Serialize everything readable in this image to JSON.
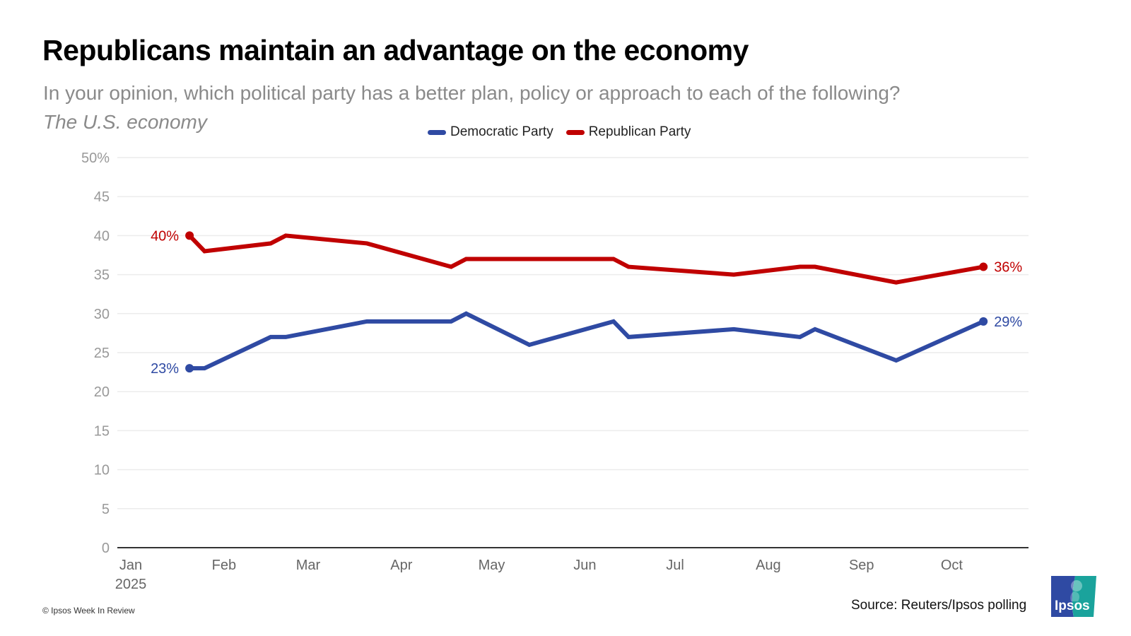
{
  "header": {
    "title": "Republicans maintain an advantage on the economy",
    "subtitle": "In your opinion, which political party has a better plan, policy or approach to each of the following?",
    "topic": "The U.S. economy"
  },
  "footer": {
    "copyright": "© Ipsos Week In Review",
    "source": "Source: Reuters/Ipsos polling",
    "logo_text": "Ipsos"
  },
  "colors": {
    "democratic": "#2f4aa3",
    "republican": "#c00000",
    "logo_blue": "#2f4aa3",
    "logo_teal": "#1aa39c"
  },
  "chart_data": {
    "type": "line",
    "title": "Republicans maintain an advantage on the economy",
    "xlabel": "",
    "ylabel": "",
    "ylim": [
      0,
      50
    ],
    "yticks": [
      "0",
      "5",
      "10",
      "15",
      "20",
      "25",
      "30",
      "35",
      "40",
      "45",
      "50%"
    ],
    "xticks": [
      "Jan\n2025",
      "Feb",
      "Mar",
      "Apr",
      "May",
      "Jun",
      "Jul",
      "Aug",
      "Sep",
      "Oct"
    ],
    "xlim_days": [
      0,
      303
    ],
    "x_day_of_year": [
      24,
      29,
      51,
      56,
      83,
      111,
      116,
      137,
      165,
      170,
      205,
      227,
      232,
      259,
      288
    ],
    "grid": true,
    "legend_position": "top-center",
    "series": [
      {
        "name": "Democratic Party",
        "color": "#2f4aa3",
        "values": [
          23,
          23,
          27,
          27,
          29,
          29,
          30,
          26,
          29,
          27,
          28,
          27,
          28,
          24,
          29
        ],
        "start_label": "23%",
        "end_label": "29%"
      },
      {
        "name": "Republican Party",
        "color": "#c00000",
        "values": [
          40,
          38,
          39,
          40,
          39,
          36,
          37,
          37,
          37,
          36,
          35,
          36,
          36,
          34,
          36
        ],
        "start_label": "40%",
        "end_label": "36%"
      }
    ]
  }
}
